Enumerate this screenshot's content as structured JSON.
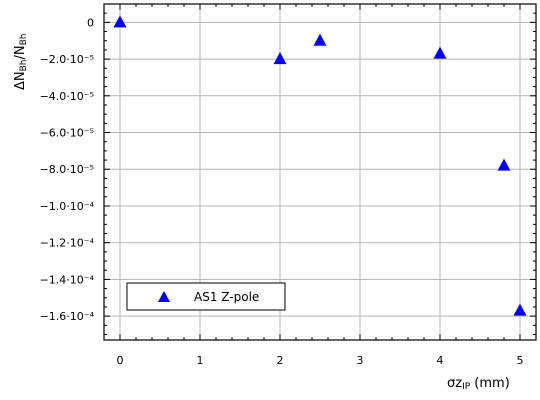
{
  "chart_data": {
    "type": "scatter",
    "xlabel": "σz",
    "xlabel_sub": "IP",
    "xlabel_unit": " (mm)",
    "ylabel": "ΔN",
    "ylabel_sub1": "Bh",
    "ylabel_mid": "/N",
    "ylabel_sub2": "Bh",
    "xlim": [
      -0.2,
      5.2
    ],
    "ylim": [
      -0.000173,
      1e-05
    ],
    "x_ticks": [
      0,
      1,
      2,
      3,
      4,
      5
    ],
    "x_tick_labels": [
      "0",
      "1",
      "2",
      "3",
      "4",
      "5"
    ],
    "y_ticks": [
      0,
      -2e-05,
      -4e-05,
      -6e-05,
      -8e-05,
      -0.0001,
      -0.00012,
      -0.00014,
      -0.00016
    ],
    "y_tick_labels": [
      "0",
      "−2.0·10⁻⁵",
      "−4.0·10⁻⁵",
      "−6.0·10⁻⁵",
      "−8.0·10⁻⁵",
      "−1.0·10⁻⁴",
      "−1.2·10⁻⁴",
      "−1.4·10⁻⁴",
      "−1.6·10⁻⁴"
    ],
    "grid": true,
    "legend_placement": "bottom-left",
    "series": [
      {
        "name": "AS1 Z-pole",
        "marker": "triangle",
        "color": "#0000ee",
        "x": [
          0,
          2,
          2.5,
          4,
          4.8,
          5
        ],
        "y": [
          0,
          -2e-05,
          -1e-05,
          -1.7e-05,
          -7.8e-05,
          -0.000157
        ]
      }
    ]
  }
}
